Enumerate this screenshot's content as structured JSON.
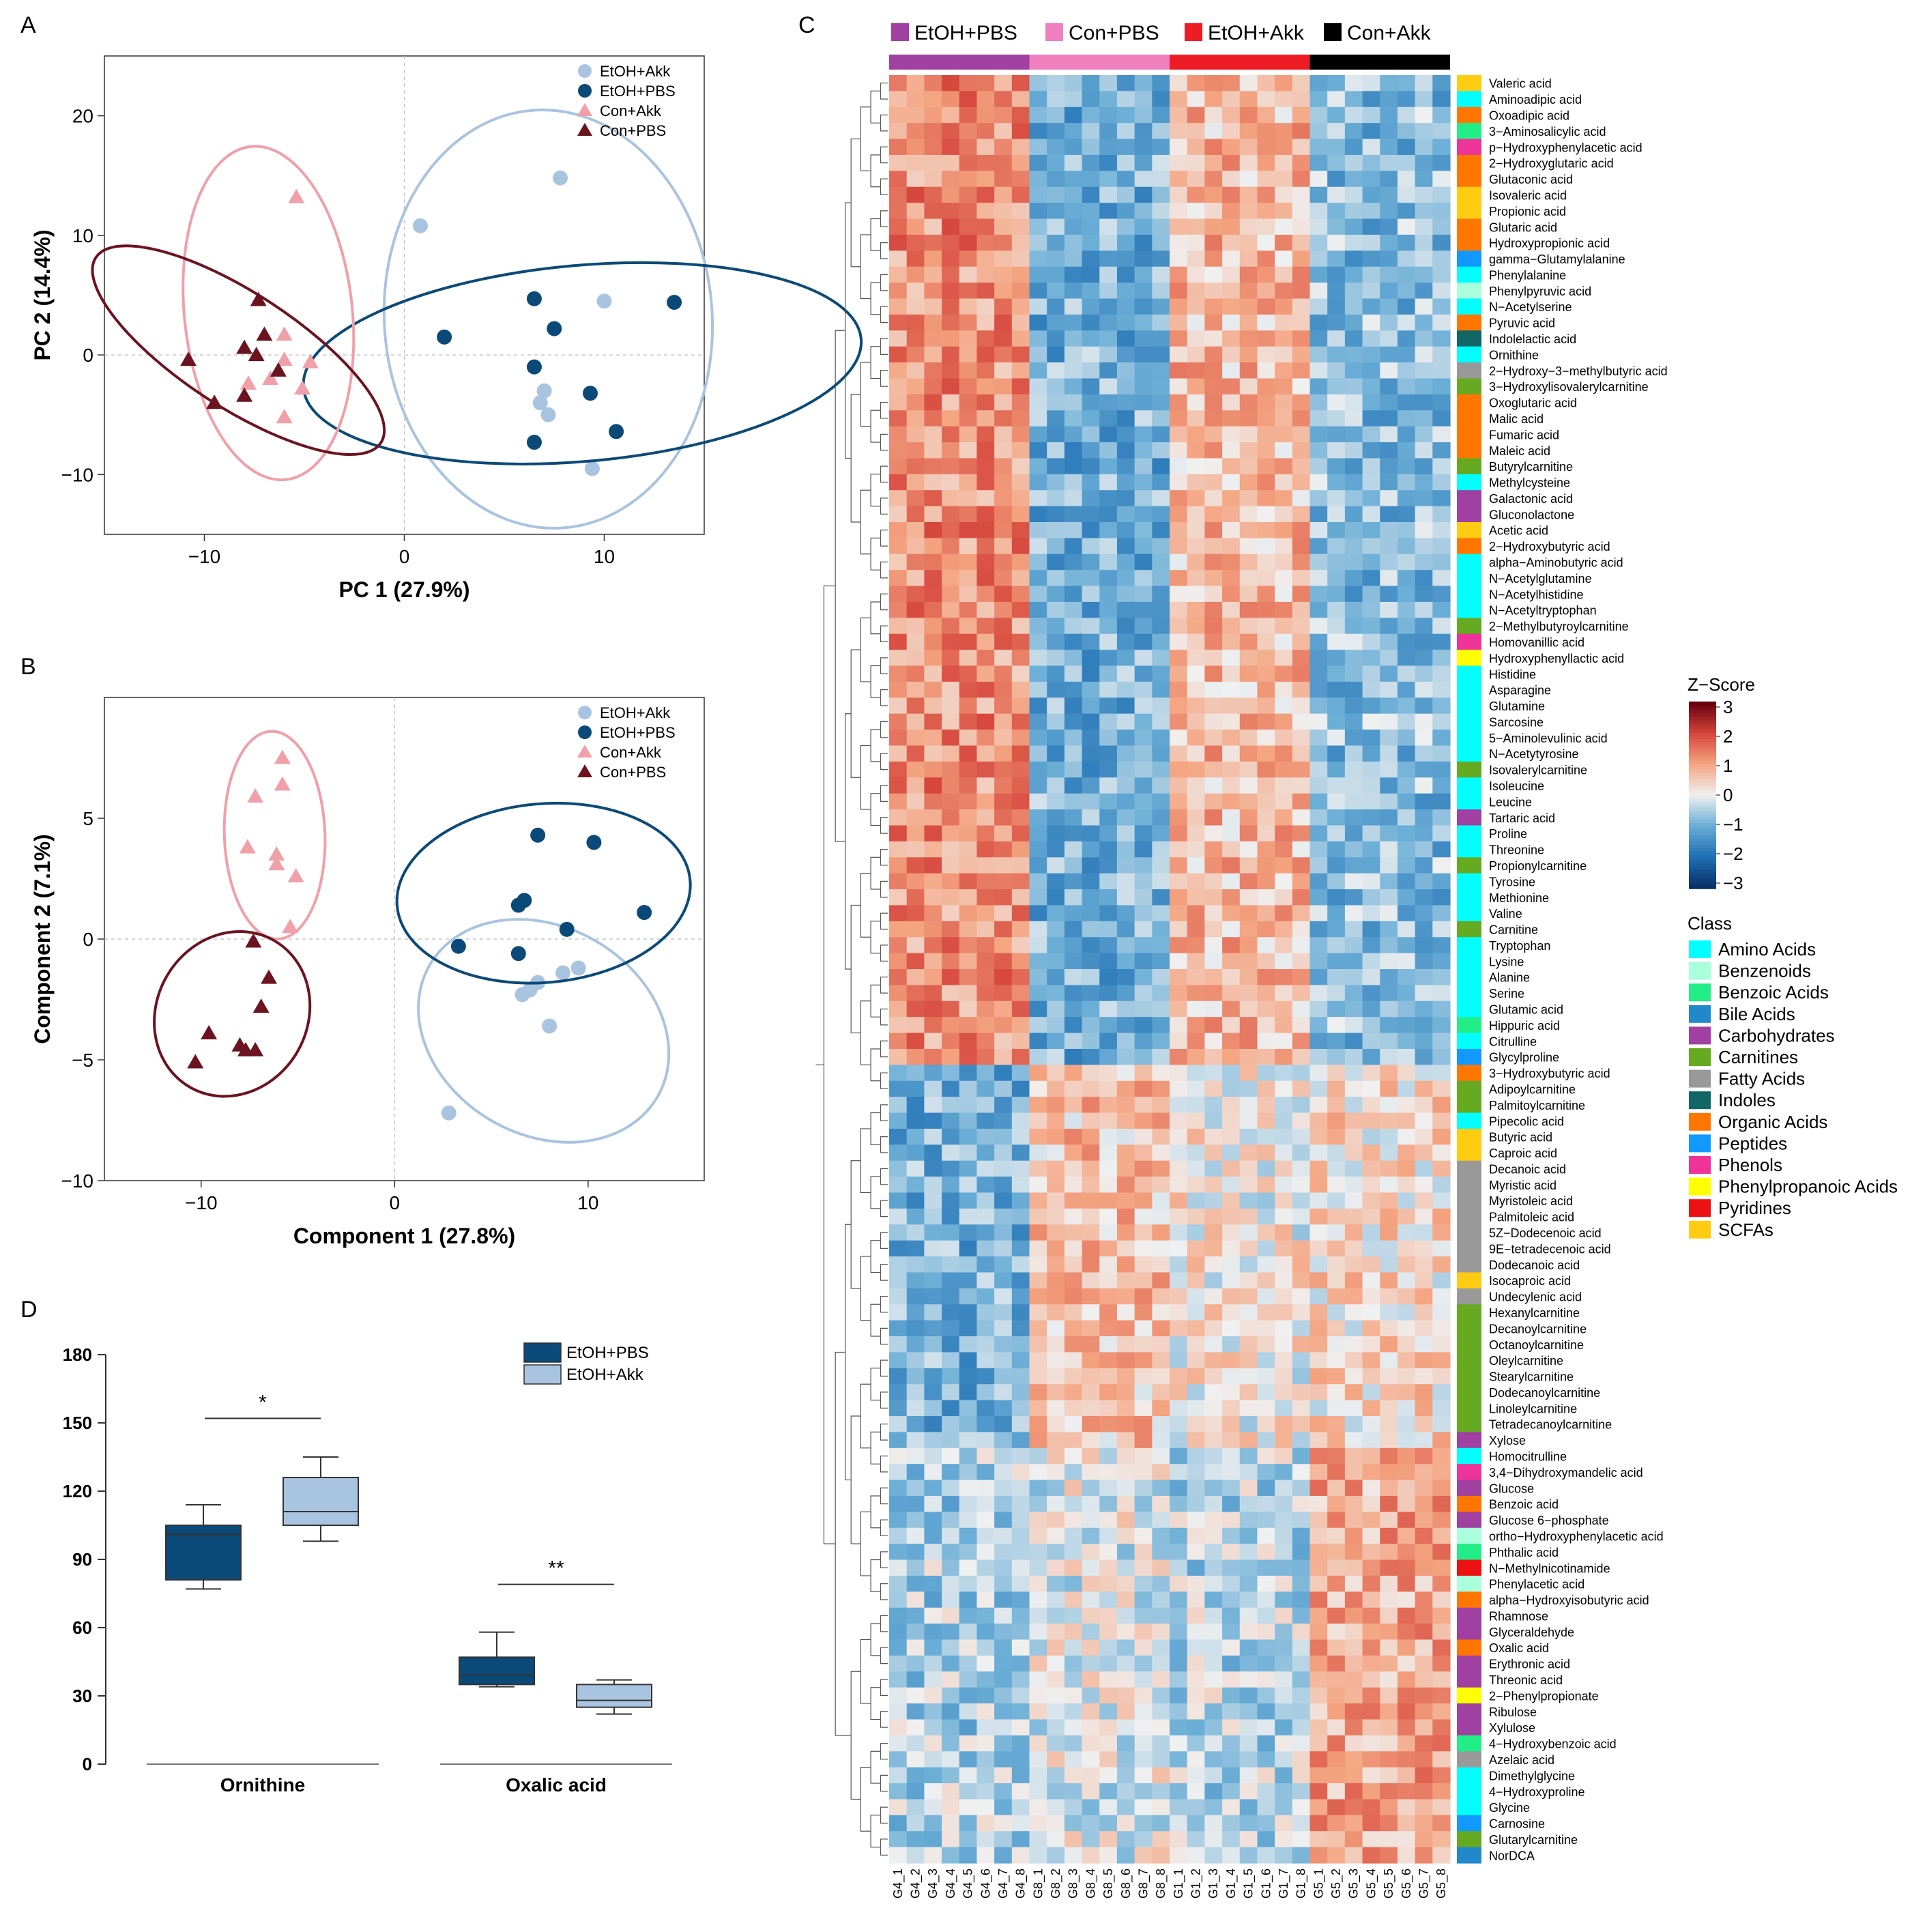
{
  "panels": {
    "A": "A",
    "B": "B",
    "C": "C",
    "D": "D"
  },
  "colors": {
    "etoh_akk": "#a9c4e0",
    "etoh_pbs": "#0b4a78",
    "con_akk": "#f0a0a8",
    "con_pbs": "#6b1420",
    "group_etoh_pbs": "#a040a0",
    "group_con_pbs": "#f080c0",
    "group_etoh_akk": "#ee1c24",
    "group_con_akk": "#000000"
  },
  "chart_data": [
    {
      "panel": "A",
      "type": "scatter",
      "xlabel": "PC 1 (27.9%)",
      "ylabel": "PC 2 (14.4%)",
      "xlim": [
        -15,
        15
      ],
      "ylim": [
        -15,
        25
      ],
      "xticks": [
        "−10",
        "0",
        "10"
      ],
      "yticks": [
        "−10",
        "0",
        "10",
        "20"
      ],
      "legend": [
        "EtOH+Akk",
        "EtOH+PBS",
        "Con+Akk",
        "Con+PBS"
      ],
      "series": [
        {
          "name": "EtOH+Akk",
          "marker": "circle",
          "points": [
            [
              0.8,
              10.8
            ],
            [
              7.8,
              14.8
            ],
            [
              10,
              4.5
            ],
            [
              7,
              -3
            ],
            [
              7.2,
              -5
            ],
            [
              6.8,
              -4
            ],
            [
              9.4,
              -9.5
            ]
          ],
          "ellipse": {
            "cx": 7.2,
            "cy": 3,
            "rx": 8.2,
            "ry": 17.5,
            "angle": 4
          }
        },
        {
          "name": "EtOH+PBS",
          "marker": "circle",
          "points": [
            [
              2,
              1.5
            ],
            [
              6.5,
              4.7
            ],
            [
              7.5,
              2.2
            ],
            [
              13.5,
              4.4
            ],
            [
              6.5,
              -1
            ],
            [
              9.3,
              -3.2
            ],
            [
              6.5,
              -7.3
            ],
            [
              10.6,
              -6.4
            ]
          ],
          "ellipse": {
            "cx": 8.9,
            "cy": -0.7,
            "rx": 14,
            "ry": 8.2,
            "angle": 5
          }
        },
        {
          "name": "Con+Akk",
          "marker": "triangle",
          "points": [
            [
              -5.4,
              13.2
            ],
            [
              -6,
              1.7
            ],
            [
              -6,
              -0.4
            ],
            [
              -4.7,
              -0.6
            ],
            [
              -6.7,
              -2
            ],
            [
              -7.8,
              -2.4
            ],
            [
              -5.1,
              -2.8
            ],
            [
              -6,
              -5.2
            ]
          ],
          "ellipse": {
            "cx": -6.8,
            "cy": 3.5,
            "rx": 4.2,
            "ry": 14,
            "angle": 6
          }
        },
        {
          "name": "Con+PBS",
          "marker": "triangle",
          "points": [
            [
              -7.3,
              4.6
            ],
            [
              -7,
              1.7
            ],
            [
              -8,
              0.6
            ],
            [
              -7.4,
              0
            ],
            [
              -10.8,
              -0.4
            ],
            [
              -6.3,
              -1.3
            ],
            [
              -8,
              -3.4
            ],
            [
              -9.5,
              -4
            ]
          ],
          "ellipse": {
            "cx": -8.3,
            "cy": 0.4,
            "rx": 8.5,
            "ry": 4.8,
            "angle": -33
          }
        }
      ]
    },
    {
      "panel": "B",
      "type": "scatter",
      "xlabel": "Component 1 (27.8%)",
      "ylabel": "Component 2 (7.1%)",
      "xlim": [
        -15,
        16
      ],
      "ylim": [
        -10,
        10
      ],
      "xticks": [
        "−10",
        "0",
        "10"
      ],
      "yticks": [
        "−10",
        "−5",
        "0",
        "5"
      ],
      "legend": [
        "EtOH+Akk",
        "EtOH+PBS",
        "Con+Akk",
        "Con+PBS"
      ],
      "series": [
        {
          "name": "EtOH+Akk",
          "marker": "circle",
          "points": [
            [
              9.5,
              -1.2
            ],
            [
              8.7,
              -1.4
            ],
            [
              7.4,
              -1.8
            ],
            [
              7,
              -2.1
            ],
            [
              6.6,
              -2.3
            ],
            [
              8,
              -3.6
            ],
            [
              2.8,
              -7.2
            ]
          ],
          "ellipse": {
            "cx": 7.7,
            "cy": -3.8,
            "rx": 6.8,
            "ry": 4.3,
            "angle": -30
          }
        },
        {
          "name": "EtOH+PBS",
          "marker": "circle",
          "points": [
            [
              7.4,
              4.3
            ],
            [
              10.3,
              4
            ],
            [
              6.7,
              1.6
            ],
            [
              6.4,
              1.4
            ],
            [
              12.9,
              1.1
            ],
            [
              8.9,
              0.4
            ],
            [
              3.3,
              -0.3
            ],
            [
              6.4,
              -0.6
            ]
          ],
          "ellipse": {
            "cx": 7.7,
            "cy": 1.9,
            "rx": 7.6,
            "ry": 3.7,
            "angle": 5
          }
        },
        {
          "name": "Con+Akk",
          "marker": "triangle",
          "points": [
            [
              -5.8,
              7.5
            ],
            [
              -5.8,
              6.4
            ],
            [
              -7.2,
              5.9
            ],
            [
              -7.6,
              3.8
            ],
            [
              -6.1,
              3.5
            ],
            [
              -6.1,
              3.1
            ],
            [
              -5.1,
              2.6
            ],
            [
              -5.4,
              0.5
            ]
          ],
          "ellipse": {
            "cx": -6.2,
            "cy": 4.3,
            "rx": 2.6,
            "ry": 4.3,
            "angle": 2
          }
        },
        {
          "name": "Con+PBS",
          "marker": "triangle",
          "points": [
            [
              -7.3,
              -0.1
            ],
            [
              -6.5,
              -1.6
            ],
            [
              -9.6,
              -3.9
            ],
            [
              -6.9,
              -2.8
            ],
            [
              -8,
              -4.4
            ],
            [
              -7.7,
              -4.6
            ],
            [
              -7.2,
              -4.6
            ],
            [
              -10.3,
              -5.1
            ]
          ],
          "ellipse": {
            "cx": -8.4,
            "cy": -3.1,
            "rx": 3.9,
            "ry": 3.5,
            "angle": -30
          }
        }
      ]
    },
    {
      "panel": "C",
      "type": "heatmap",
      "groups": [
        {
          "name": "EtOH+PBS",
          "color": "#a040a0"
        },
        {
          "name": "Con+PBS",
          "color": "#f080c0"
        },
        {
          "name": "EtOH+Akk",
          "color": "#ee1c24"
        },
        {
          "name": "Con+Akk",
          "color": "#000000"
        }
      ],
      "columns": [
        "G4_1",
        "G4_2",
        "G4_3",
        "G4_4",
        "G4_5",
        "G4_6",
        "G4_7",
        "G4_8",
        "G8_1",
        "G8_2",
        "G8_3",
        "G8_4",
        "G8_5",
        "G8_6",
        "G8_7",
        "G8_8",
        "G1_1",
        "G1_2",
        "G1_3",
        "G1_4",
        "G1_5",
        "G1_6",
        "G1_7",
        "G1_8",
        "G5_1",
        "G5_2",
        "G5_3",
        "G5_4",
        "G5_5",
        "G5_6",
        "G5_7",
        "G5_8"
      ],
      "rows": [
        [
          "Valeric acid",
          "SCFAs"
        ],
        [
          "Aminoadipic acid",
          "Amino Acids"
        ],
        [
          "Oxoadipic acid",
          "Organic Acids"
        ],
        [
          "3−Aminosalicylic acid",
          "Benzoic Acids"
        ],
        [
          "p−Hydroxyphenylacetic acid",
          "Phenols"
        ],
        [
          "2−Hydroxyglutaric acid",
          "Organic Acids"
        ],
        [
          "Glutaconic acid",
          "Organic Acids"
        ],
        [
          "Isovaleric acid",
          "SCFAs"
        ],
        [
          "Propionic acid",
          "SCFAs"
        ],
        [
          "Glutaric acid",
          "Organic Acids"
        ],
        [
          "Hydroxypropionic acid",
          "Organic Acids"
        ],
        [
          "gamma−Glutamylalanine",
          "Peptides"
        ],
        [
          "Phenylalanine",
          "Amino Acids"
        ],
        [
          "Phenylpyruvic acid",
          "Benzenoids"
        ],
        [
          "N−Acetylserine",
          "Amino Acids"
        ],
        [
          "Pyruvic acid",
          "Organic Acids"
        ],
        [
          "Indolelactic acid",
          "Indoles"
        ],
        [
          "Ornithine",
          "Amino Acids"
        ],
        [
          "2−Hydroxy−3−methylbutyric acid",
          "Fatty Acids"
        ],
        [
          "3−Hydroxylisovalerylcarnitine",
          "Carnitines"
        ],
        [
          "Oxoglutaric acid",
          "Organic Acids"
        ],
        [
          "Malic acid",
          "Organic Acids"
        ],
        [
          "Fumaric acid",
          "Organic Acids"
        ],
        [
          "Maleic acid",
          "Organic Acids"
        ],
        [
          "Butyrylcarnitine",
          "Carnitines"
        ],
        [
          "Methylcysteine",
          "Amino Acids"
        ],
        [
          "Galactonic acid",
          "Carbohydrates"
        ],
        [
          "Gluconolactone",
          "Carbohydrates"
        ],
        [
          "Acetic acid",
          "SCFAs"
        ],
        [
          "2−Hydroxybutyric acid",
          "Organic Acids"
        ],
        [
          "alpha−Aminobutyric acid",
          "Amino Acids"
        ],
        [
          "N−Acetylglutamine",
          "Amino Acids"
        ],
        [
          "N−Acetylhistidine",
          "Amino Acids"
        ],
        [
          "N−Acetyltryptophan",
          "Amino Acids"
        ],
        [
          "2−Methylbutyroylcarnitine",
          "Carnitines"
        ],
        [
          "Homovanillic acid",
          "Phenols"
        ],
        [
          "Hydroxyphenyllactic acid",
          "Phenylpropanoic Acids"
        ],
        [
          "Histidine",
          "Amino Acids"
        ],
        [
          "Asparagine",
          "Amino Acids"
        ],
        [
          "Glutamine",
          "Amino Acids"
        ],
        [
          "Sarcosine",
          "Amino Acids"
        ],
        [
          "5−Aminolevulinic acid",
          "Amino Acids"
        ],
        [
          "N−Acetytyrosine",
          "Amino Acids"
        ],
        [
          "Isovalerylcarnitine",
          "Carnitines"
        ],
        [
          "Isoleucine",
          "Amino Acids"
        ],
        [
          "Leucine",
          "Amino Acids"
        ],
        [
          "Tartaric acid",
          "Carbohydrates"
        ],
        [
          "Proline",
          "Amino Acids"
        ],
        [
          "Threonine",
          "Amino Acids"
        ],
        [
          "Propionylcarnitine",
          "Carnitines"
        ],
        [
          "Tyrosine",
          "Amino Acids"
        ],
        [
          "Methionine",
          "Amino Acids"
        ],
        [
          "Valine",
          "Amino Acids"
        ],
        [
          "Carnitine",
          "Carnitines"
        ],
        [
          "Tryptophan",
          "Amino Acids"
        ],
        [
          "Lysine",
          "Amino Acids"
        ],
        [
          "Alanine",
          "Amino Acids"
        ],
        [
          "Serine",
          "Amino Acids"
        ],
        [
          "Glutamic acid",
          "Amino Acids"
        ],
        [
          "Hippuric acid",
          "Benzoic Acids"
        ],
        [
          "Citrulline",
          "Amino Acids"
        ],
        [
          "Glycylproline",
          "Peptides"
        ],
        [
          "3−Hydroxybutyric acid",
          "Organic Acids"
        ],
        [
          "Adipoylcarnitine",
          "Carnitines"
        ],
        [
          "Palmitoylcarnitine",
          "Carnitines"
        ],
        [
          "Pipecolic acid",
          "Amino Acids"
        ],
        [
          "Butyric acid",
          "SCFAs"
        ],
        [
          "Caproic acid",
          "SCFAs"
        ],
        [
          "Decanoic acid",
          "Fatty Acids"
        ],
        [
          "Myristic acid",
          "Fatty Acids"
        ],
        [
          "Myristoleic acid",
          "Fatty Acids"
        ],
        [
          "Palmitoleic acid",
          "Fatty Acids"
        ],
        [
          "5Z−Dodecenoic acid",
          "Fatty Acids"
        ],
        [
          "9E−tetradecenoic acid",
          "Fatty Acids"
        ],
        [
          "Dodecanoic acid",
          "Fatty Acids"
        ],
        [
          "Isocaproic acid",
          "SCFAs"
        ],
        [
          "Undecylenic acid",
          "Fatty Acids"
        ],
        [
          "Hexanylcarnitine",
          "Carnitines"
        ],
        [
          "Decanoylcarnitine",
          "Carnitines"
        ],
        [
          "Octanoylcarnitine",
          "Carnitines"
        ],
        [
          "Oleylcarnitine",
          "Carnitines"
        ],
        [
          "Stearylcarnitine",
          "Carnitines"
        ],
        [
          "Dodecanoylcarnitine",
          "Carnitines"
        ],
        [
          "Linoleylcarnitine",
          "Carnitines"
        ],
        [
          "Tetradecanoylcarnitine",
          "Carnitines"
        ],
        [
          "Xylose",
          "Carbohydrates"
        ],
        [
          "Homocitrulline",
          "Amino Acids"
        ],
        [
          "3,4−Dihydroxymandelic acid",
          "Phenols"
        ],
        [
          "Glucose",
          "Carbohydrates"
        ],
        [
          "Benzoic acid",
          "Organic Acids"
        ],
        [
          "Glucose 6−phosphate",
          "Carbohydrates"
        ],
        [
          "ortho−Hydroxyphenylacetic acid",
          "Benzenoids"
        ],
        [
          "Phthalic acid",
          "Benzoic Acids"
        ],
        [
          "N−Methylnicotinamide",
          "Pyridines"
        ],
        [
          "Phenylacetic acid",
          "Benzenoids"
        ],
        [
          "alpha−Hydroxyisobutyric acid",
          "Organic Acids"
        ],
        [
          "Rhamnose",
          "Carbohydrates"
        ],
        [
          "Glyceraldehyde",
          "Carbohydrates"
        ],
        [
          "Oxalic acid",
          "Organic Acids"
        ],
        [
          "Erythronic acid",
          "Carbohydrates"
        ],
        [
          "Threonic acid",
          "Carbohydrates"
        ],
        [
          "2−Phenylpropionate",
          "Phenylpropanoic Acids"
        ],
        [
          "Ribulose",
          "Carbohydrates"
        ],
        [
          "Xylulose",
          "Carbohydrates"
        ],
        [
          "4−Hydroxybenzoic acid",
          "Benzoic Acids"
        ],
        [
          "Azelaic acid",
          "Fatty Acids"
        ],
        [
          "Dimethylglycine",
          "Amino Acids"
        ],
        [
          "4−Hydroxyproline",
          "Amino Acids"
        ],
        [
          "Glycine",
          "Amino Acids"
        ],
        [
          "Carnosine",
          "Peptides"
        ],
        [
          "Glutarylcarnitine",
          "Carnitines"
        ],
        [
          "NorDCA",
          "Bile Acids"
        ]
      ],
      "colorbar": {
        "title": "Z−Score",
        "ticks": [
          "3",
          "2",
          "1",
          "0",
          "−1",
          "−2",
          "−3"
        ],
        "range": [
          -3,
          3
        ]
      },
      "class_legend": {
        "title": "Class",
        "items": [
          {
            "name": "Amino Acids",
            "color": "#00ffff"
          },
          {
            "name": "Benzenoids",
            "color": "#aaffdd"
          },
          {
            "name": "Benzoic Acids",
            "color": "#22ee88"
          },
          {
            "name": "Bile Acids",
            "color": "#2288cc"
          },
          {
            "name": "Carbohydrates",
            "color": "#a040a0"
          },
          {
            "name": "Carnitines",
            "color": "#66aa22"
          },
          {
            "name": "Fatty Acids",
            "color": "#999999"
          },
          {
            "name": "Indoles",
            "color": "#116666"
          },
          {
            "name": "Organic Acids",
            "color": "#ff7700"
          },
          {
            "name": "Peptides",
            "color": "#1199ff"
          },
          {
            "name": "Phenols",
            "color": "#ee3399"
          },
          {
            "name": "Phenylpropanoic Acids",
            "color": "#ffff00"
          },
          {
            "name": "Pyridines",
            "color": "#ee1111"
          },
          {
            "name": "SCFAs",
            "color": "#ffcc11"
          }
        ]
      }
    },
    {
      "panel": "D",
      "type": "box",
      "ylim": [
        0,
        180
      ],
      "yticks": [
        "0",
        "30",
        "60",
        "90",
        "120",
        "150",
        "180"
      ],
      "categories": [
        "Ornithine",
        "Oxalic acid"
      ],
      "legend": [
        "EtOH+PBS",
        "EtOH+Akk"
      ],
      "boxes": [
        {
          "category": "Ornithine",
          "series": "EtOH+PBS",
          "min": 77,
          "q1": 81,
          "median": 101,
          "q3": 105,
          "max": 114
        },
        {
          "category": "Ornithine",
          "series": "EtOH+Akk",
          "min": 98,
          "q1": 105,
          "median": 111,
          "q3": 126,
          "max": 135
        },
        {
          "category": "Oxalic acid",
          "series": "EtOH+PBS",
          "min": 34,
          "q1": 35,
          "median": 39,
          "q3": 47,
          "max": 58
        },
        {
          "category": "Oxalic acid",
          "series": "EtOH+Akk",
          "min": 22,
          "q1": 25,
          "median": 28,
          "q3": 35,
          "max": 37
        }
      ],
      "significance": [
        {
          "category": "Ornithine",
          "label": "*",
          "y": 152
        },
        {
          "category": "Oxalic acid",
          "label": "**",
          "y": 79
        }
      ]
    }
  ]
}
